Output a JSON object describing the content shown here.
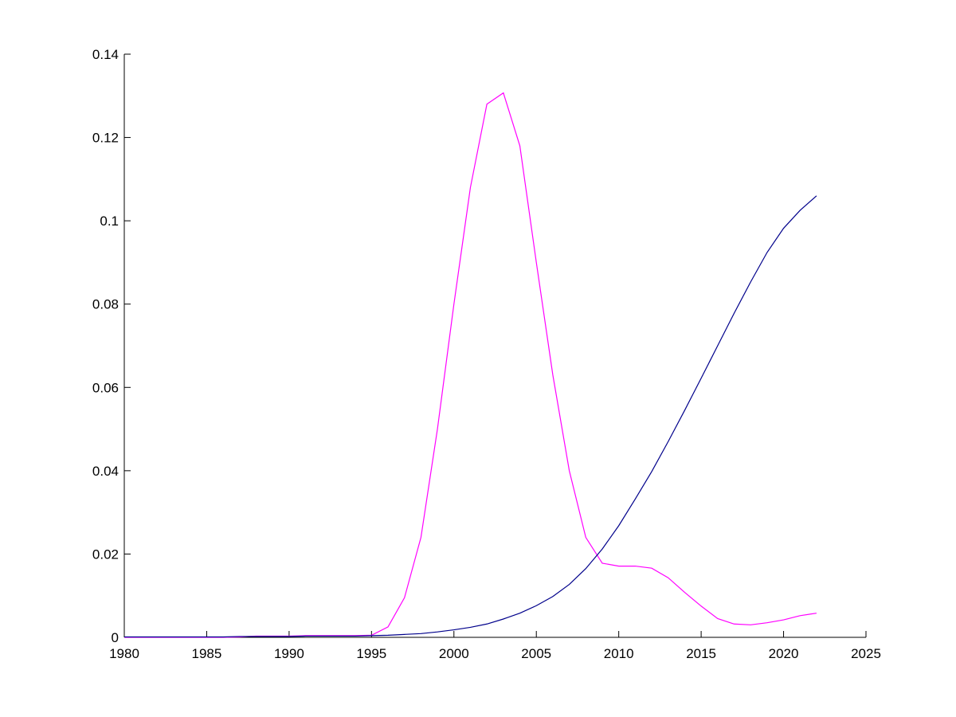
{
  "chart_data": {
    "type": "line",
    "x": [
      1980,
      1981,
      1982,
      1983,
      1984,
      1985,
      1986,
      1987,
      1988,
      1989,
      1990,
      1991,
      1992,
      1993,
      1994,
      1995,
      1996,
      1997,
      1998,
      1999,
      2000,
      2001,
      2002,
      2003,
      2004,
      2005,
      2006,
      2007,
      2008,
      2009,
      2010,
      2011,
      2012,
      2013,
      2014,
      2015,
      2016,
      2017,
      2018,
      2019,
      2020,
      2021,
      2022
    ],
    "series": [
      {
        "color": "#ff00ff",
        "values": [
          0,
          0,
          0,
          0,
          0,
          0,
          0,
          0.0001,
          0.0003,
          0.0003,
          0.0003,
          0.0004,
          0.0004,
          0.0004,
          0.0004,
          0.0005,
          0.0025,
          0.0095,
          0.024,
          0.05,
          0.08,
          0.108,
          0.128,
          0.1307,
          0.118,
          0.09,
          0.063,
          0.04,
          0.024,
          0.0178,
          0.0171,
          0.0171,
          0.0166,
          0.0143,
          0.0108,
          0.0075,
          0.0045,
          0.0032,
          0.003,
          0.0035,
          0.0042,
          0.0052,
          0.0058
        ]
      },
      {
        "color": "#00008b",
        "values": [
          0.0001,
          0.0001,
          0.0001,
          0.0001,
          0.0001,
          0.0001,
          0.0001,
          0.0002,
          0.0002,
          0.0002,
          0.0002,
          0.0003,
          0.0003,
          0.0003,
          0.0003,
          0.0004,
          0.0005,
          0.0007,
          0.0009,
          0.0013,
          0.0018,
          0.0024,
          0.0032,
          0.0044,
          0.0058,
          0.0076,
          0.0098,
          0.0127,
          0.0165,
          0.0212,
          0.0268,
          0.0332,
          0.0398,
          0.047,
          0.0545,
          0.0622,
          0.07,
          0.0778,
          0.0853,
          0.0924,
          0.0982,
          0.1025,
          0.106
        ]
      }
    ],
    "xlim": [
      1980,
      2025
    ],
    "xticks": [
      1980,
      1985,
      1990,
      1995,
      2000,
      2005,
      2010,
      2015,
      2020,
      2025
    ],
    "ylim": [
      0,
      0.14
    ],
    "yticks": [
      0,
      0.02,
      0.04,
      0.06,
      0.08,
      0.1,
      0.12,
      0.14
    ]
  }
}
